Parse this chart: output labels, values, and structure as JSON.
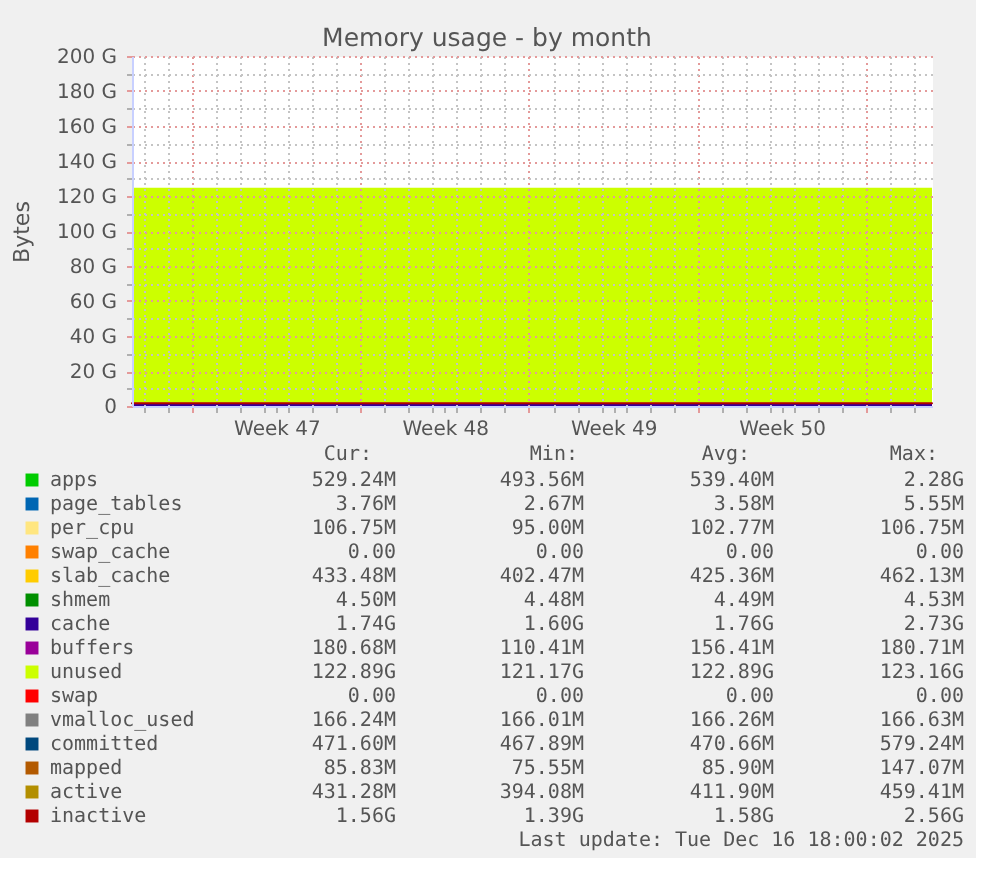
{
  "chart_data": {
    "type": "area",
    "title": "Memory usage - by month",
    "ylabel": "Bytes",
    "stacked": true,
    "grid": true,
    "legend": "bottom",
    "x": [
      "2025-11-13T12:00",
      "2025-12-16T18:00"
    ],
    "xlim": [
      "2025-11-13T12:00",
      "2025-12-16T18:00"
    ],
    "xticks": [
      {
        "value": "2025-11-14",
        "label": null
      },
      {
        "value": "2025-11-15",
        "label": null
      },
      {
        "value": "2025-11-16",
        "label": null
      },
      {
        "value": "2025-11-17",
        "label": null
      },
      {
        "value": "2025-11-18",
        "label": null
      },
      {
        "value": "2025-11-19",
        "label": null
      },
      {
        "value": "2025-11-20",
        "label": null
      },
      {
        "value": "2025-11-21",
        "label": null
      },
      {
        "value": "2025-11-22",
        "label": null
      },
      {
        "value": "2025-11-23",
        "label": null
      },
      {
        "value": "2025-11-24",
        "label": null
      },
      {
        "value": "2025-11-25",
        "label": null
      },
      {
        "value": "2025-11-26",
        "label": null
      },
      {
        "value": "2025-11-27",
        "label": null
      },
      {
        "value": "2025-11-28",
        "label": null
      },
      {
        "value": "2025-11-29",
        "label": null
      },
      {
        "value": "2025-11-30",
        "label": null
      },
      {
        "value": "2025-12-01",
        "label": null
      },
      {
        "value": "2025-12-02",
        "label": null
      },
      {
        "value": "2025-12-03",
        "label": null
      },
      {
        "value": "2025-12-04",
        "label": null
      },
      {
        "value": "2025-12-05",
        "label": null
      },
      {
        "value": "2025-12-06",
        "label": null
      },
      {
        "value": "2025-12-07",
        "label": null
      },
      {
        "value": "2025-12-08",
        "label": null
      },
      {
        "value": "2025-12-09",
        "label": null
      },
      {
        "value": "2025-12-10",
        "label": null
      },
      {
        "value": "2025-12-11",
        "label": null
      },
      {
        "value": "2025-12-12",
        "label": null
      },
      {
        "value": "2025-12-13",
        "label": null
      },
      {
        "value": "2025-12-14",
        "label": null
      },
      {
        "value": "2025-12-15",
        "label": null
      },
      {
        "value": "2025-12-16",
        "label": null
      },
      {
        "value": "2025-11-19T12:00",
        "label": "Week 47"
      },
      {
        "value": "2025-11-26T12:00",
        "label": "Week 48"
      },
      {
        "value": "2025-12-03T12:00",
        "label": "Week 49"
      },
      {
        "value": "2025-12-10T12:00",
        "label": "Week 50"
      }
    ],
    "ylim": [
      0,
      200
    ],
    "yticks": [
      0,
      {
        "value": 10,
        "label": null
      },
      {
        "value": 20,
        "label": "20 G"
      },
      {
        "value": 30,
        "label": null
      },
      {
        "value": 40,
        "label": "40 G"
      },
      {
        "value": 50,
        "label": null
      },
      {
        "value": 60,
        "label": "60 G"
      },
      {
        "value": 70,
        "label": null
      },
      {
        "value": 80,
        "label": "80 G"
      },
      {
        "value": 90,
        "label": null
      },
      {
        "value": 100,
        "label": "100 G"
      },
      {
        "value": 110,
        "label": null
      },
      {
        "value": 120,
        "label": "120 G"
      },
      {
        "value": 130,
        "label": null
      },
      {
        "value": 140,
        "label": "140 G"
      },
      {
        "value": 150,
        "label": null
      },
      {
        "value": 160,
        "label": "160 G"
      },
      {
        "value": 170,
        "label": null
      },
      {
        "value": 180,
        "label": "180 G"
      },
      {
        "value": 190,
        "label": null
      },
      {
        "value": 200,
        "label": "200 G"
      }
    ],
    "series": [
      {
        "name": "apps",
        "color": "#00cc00",
        "values": [
          null,
          null
        ]
      },
      {
        "name": "page_tables",
        "color": "#0066b3",
        "values": [
          null,
          null
        ]
      },
      {
        "name": "per_cpu",
        "color": "#ffe680",
        "values": [
          null,
          null
        ]
      },
      {
        "name": "swap_cache",
        "color": "#ff8000",
        "values": [
          null,
          null
        ]
      },
      {
        "name": "slab_cache",
        "color": "#ffcc00",
        "values": [
          null,
          null
        ]
      },
      {
        "name": "shmem",
        "color": "#008f00",
        "values": [
          null,
          null
        ]
      },
      {
        "name": "cache",
        "color": "#330099",
        "values": [
          1.7,
          1.7
        ]
      },
      {
        "name": "buffers",
        "color": "#990099",
        "values": [
          null,
          null
        ]
      },
      {
        "name": "unused",
        "color": "#ccff00",
        "values": [
          123,
          123
        ]
      },
      {
        "name": "swap",
        "color": "#ff0000",
        "values": [
          null,
          null
        ]
      },
      {
        "name": "vmalloc_used",
        "color": "#808080",
        "type": "line",
        "values": [
          null,
          null
        ]
      },
      {
        "name": "committed",
        "color": "#00487d",
        "type": "line",
        "values": [
          null,
          null
        ]
      },
      {
        "name": "mapped",
        "color": "#b35a00",
        "type": "line",
        "values": [
          null,
          null
        ]
      },
      {
        "name": "active",
        "color": "#b38f00",
        "type": "line",
        "values": [
          null,
          null
        ]
      },
      {
        "name": "inactive",
        "color": "#b30000",
        "type": "line",
        "values": [
          1.6,
          1.6
        ]
      }
    ],
    "annotations": [
      "Cur:",
      "Min:",
      "Avg:",
      "Max:",
      "529.24M",
      "493.56M",
      "539.40M",
      "2.28G",
      "3.76M",
      "2.67M",
      "3.58M",
      "5.55M",
      "106.75M",
      "95.00M",
      "102.77M",
      "106.75M",
      "0.00",
      "0.00",
      "0.00",
      "0.00",
      "433.48M",
      "402.47M",
      "425.36M",
      "462.13M",
      "4.50M",
      "4.48M",
      "4.49M",
      "4.53M",
      "1.74G",
      "1.60G",
      "1.76G",
      "2.73G",
      "180.68M",
      "110.41M",
      "156.41M",
      "180.71M",
      "122.89G",
      "121.17G",
      "122.89G",
      "123.16G",
      "0.00",
      "0.00",
      "0.00",
      "0.00",
      "166.24M",
      "166.01M",
      "166.26M",
      "166.63M",
      "471.60M",
      "467.89M",
      "470.66M",
      "579.24M",
      "85.83M",
      "75.55M",
      "85.90M",
      "147.07M",
      "431.28M",
      "394.08M",
      "411.90M",
      "459.41M",
      "1.56G",
      "1.39G",
      "1.58G",
      "2.56G",
      "Last update: Tue Dec 16 18:00:02 2025"
    ]
  }
}
